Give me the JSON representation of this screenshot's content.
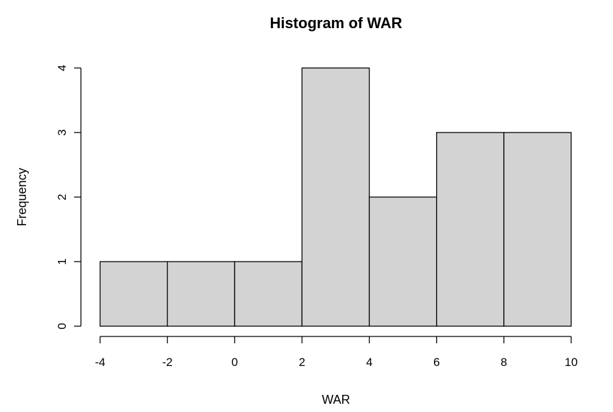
{
  "chart_data": {
    "type": "bar",
    "title": "Histogram of WAR",
    "xlabel": "WAR",
    "ylabel": "Frequency",
    "bins": [
      {
        "from": -4,
        "to": -2,
        "count": 1
      },
      {
        "from": -2,
        "to": 0,
        "count": 1
      },
      {
        "from": 0,
        "to": 2,
        "count": 1
      },
      {
        "from": 2,
        "to": 4,
        "count": 4
      },
      {
        "from": 4,
        "to": 6,
        "count": 2
      },
      {
        "from": 6,
        "to": 8,
        "count": 3
      },
      {
        "from": 8,
        "to": 10,
        "count": 3
      }
    ],
    "xlim": [
      -4,
      10
    ],
    "ylim": [
      0,
      4
    ],
    "x_ticks": [
      -4,
      -2,
      0,
      2,
      4,
      6,
      8,
      10
    ],
    "y_ticks": [
      0,
      1,
      2,
      3,
      4
    ],
    "bar_color": "#d3d3d3",
    "edge_color": "#000000",
    "grid": false,
    "legend": "none"
  }
}
